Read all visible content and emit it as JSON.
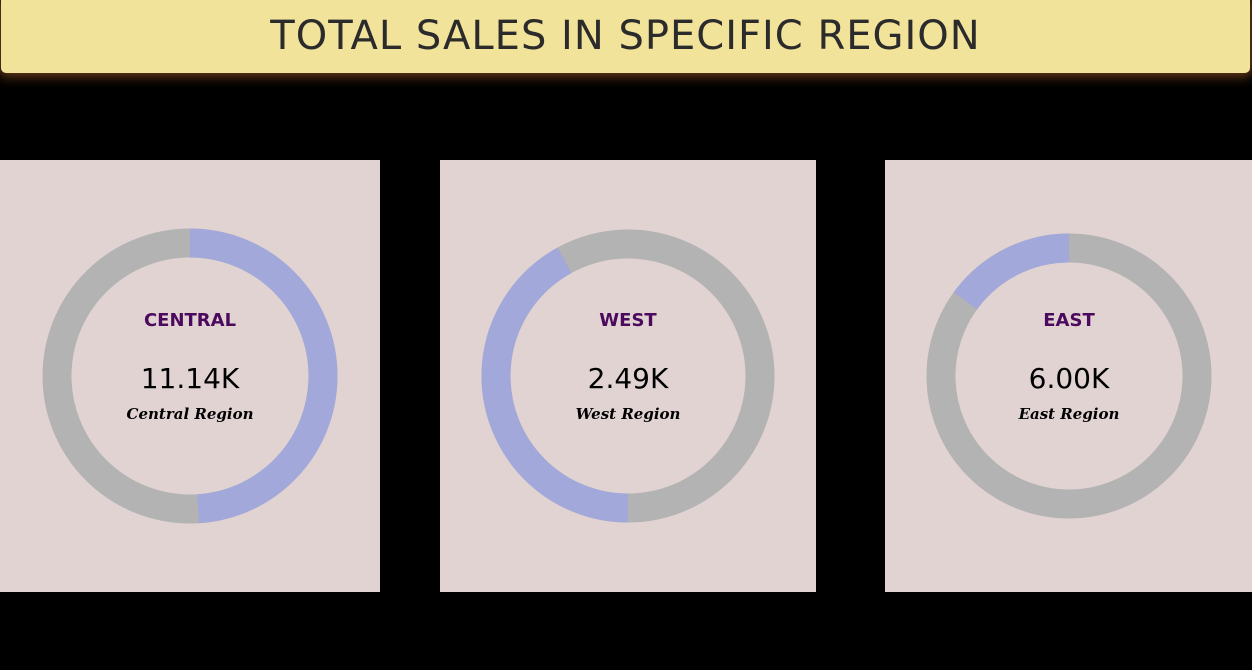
{
  "header": {
    "title": "TOTAL SALES IN SPECIFIC REGION"
  },
  "colors": {
    "highlight": "#a2a8da",
    "remainder": "#b3b3b3",
    "card_background": "#e2d3d3",
    "title_background": "#f2e39a",
    "region_label": "#4b0a5e"
  },
  "chart_data": [
    {
      "type": "pie",
      "style": "donut",
      "title": "CENTRAL",
      "value_label": "11.14K",
      "subtitle": "Central Region",
      "highlight_fraction": 0.49
    },
    {
      "type": "pie",
      "style": "donut",
      "title": "WEST",
      "value_label": "2.49K",
      "subtitle": "West Region",
      "highlight_fraction": 0.42
    },
    {
      "type": "pie",
      "style": "donut",
      "title": "EAST",
      "value_label": "6.00K",
      "subtitle": "East Region",
      "highlight_fraction": 0.15
    }
  ]
}
